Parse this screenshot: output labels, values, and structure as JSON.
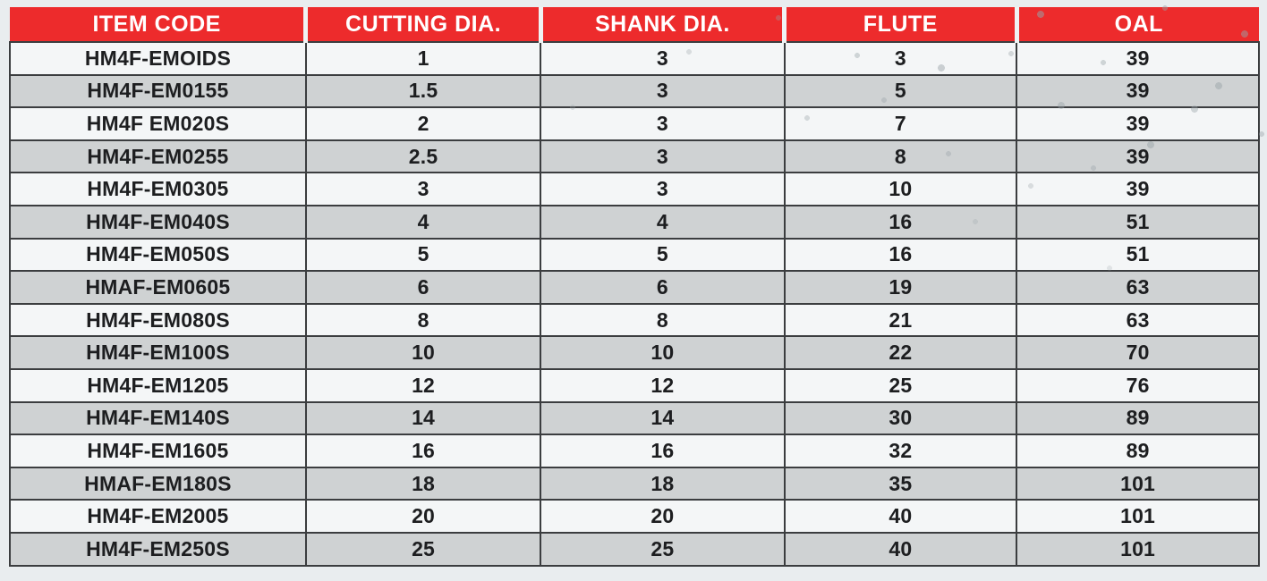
{
  "table": {
    "columns": [
      "ITEM CODE",
      "CUTTING DIA.",
      "SHANK DIA.",
      "FLUTE",
      "OAL"
    ],
    "rows": [
      [
        "HM4F-EMOIDS",
        "1",
        "3",
        "3",
        "39"
      ],
      [
        "HM4F-EM0155",
        "1.5",
        "3",
        "5",
        "39"
      ],
      [
        "HM4F EM020S",
        "2",
        "3",
        "7",
        "39"
      ],
      [
        "HM4F-EM0255",
        "2.5",
        "3",
        "8",
        "39"
      ],
      [
        "HM4F-EM0305",
        "3",
        "3",
        "10",
        "39"
      ],
      [
        "HM4F-EM040S",
        "4",
        "4",
        "16",
        "51"
      ],
      [
        "HM4F-EM050S",
        "5",
        "5",
        "16",
        "51"
      ],
      [
        "HMAF-EM0605",
        "6",
        "6",
        "19",
        "63"
      ],
      [
        "HM4F-EM080S",
        "8",
        "8",
        "21",
        "63"
      ],
      [
        "HM4F-EM100S",
        "10",
        "10",
        "22",
        "70"
      ],
      [
        "HM4F-EM1205",
        "12",
        "12",
        "25",
        "76"
      ],
      [
        "HM4F-EM140S",
        "14",
        "14",
        "30",
        "89"
      ],
      [
        "HM4F-EM1605",
        "16",
        "16",
        "32",
        "89"
      ],
      [
        "HMAF-EM180S",
        "18",
        "18",
        "35",
        "101"
      ],
      [
        "HM4F-EM2005",
        "20",
        "20",
        "40",
        "101"
      ],
      [
        "HM4F-EM250S",
        "25",
        "25",
        "40",
        "101"
      ]
    ],
    "colors": {
      "header_bg": "#ED2B2C",
      "header_text": "#FFFFFF",
      "row_light": "#F4F6F7",
      "row_dark": "#CFD2D3",
      "grid": "#3B3D3F",
      "page_bg": "#E9EDEF"
    }
  },
  "chart_data": {
    "type": "table",
    "title": "End mill specification table",
    "columns": [
      "ITEM CODE",
      "CUTTING DIA.",
      "SHANK DIA.",
      "FLUTE",
      "OAL"
    ],
    "rows": [
      {
        "item_code": "HM4F-EMOIDS",
        "cutting_dia": 1,
        "shank_dia": 3,
        "flute": 3,
        "oal": 39
      },
      {
        "item_code": "HM4F-EM0155",
        "cutting_dia": 1.5,
        "shank_dia": 3,
        "flute": 5,
        "oal": 39
      },
      {
        "item_code": "HM4F EM020S",
        "cutting_dia": 2,
        "shank_dia": 3,
        "flute": 7,
        "oal": 39
      },
      {
        "item_code": "HM4F-EM0255",
        "cutting_dia": 2.5,
        "shank_dia": 3,
        "flute": 8,
        "oal": 39
      },
      {
        "item_code": "HM4F-EM0305",
        "cutting_dia": 3,
        "shank_dia": 3,
        "flute": 10,
        "oal": 39
      },
      {
        "item_code": "HM4F-EM040S",
        "cutting_dia": 4,
        "shank_dia": 4,
        "flute": 16,
        "oal": 51
      },
      {
        "item_code": "HM4F-EM050S",
        "cutting_dia": 5,
        "shank_dia": 5,
        "flute": 16,
        "oal": 51
      },
      {
        "item_code": "HMAF-EM0605",
        "cutting_dia": 6,
        "shank_dia": 6,
        "flute": 19,
        "oal": 63
      },
      {
        "item_code": "HM4F-EM080S",
        "cutting_dia": 8,
        "shank_dia": 8,
        "flute": 21,
        "oal": 63
      },
      {
        "item_code": "HM4F-EM100S",
        "cutting_dia": 10,
        "shank_dia": 10,
        "flute": 22,
        "oal": 70
      },
      {
        "item_code": "HM4F-EM1205",
        "cutting_dia": 12,
        "shank_dia": 12,
        "flute": 25,
        "oal": 76
      },
      {
        "item_code": "HM4F-EM140S",
        "cutting_dia": 14,
        "shank_dia": 14,
        "flute": 30,
        "oal": 89
      },
      {
        "item_code": "HM4F-EM1605",
        "cutting_dia": 16,
        "shank_dia": 16,
        "flute": 32,
        "oal": 89
      },
      {
        "item_code": "HMAF-EM180S",
        "cutting_dia": 18,
        "shank_dia": 18,
        "flute": 35,
        "oal": 101
      },
      {
        "item_code": "HM4F-EM2005",
        "cutting_dia": 20,
        "shank_dia": 20,
        "flute": 40,
        "oal": 101
      },
      {
        "item_code": "HM4F-EM250S",
        "cutting_dia": 25,
        "shank_dia": 25,
        "flute": 40,
        "oal": 101
      }
    ]
  }
}
